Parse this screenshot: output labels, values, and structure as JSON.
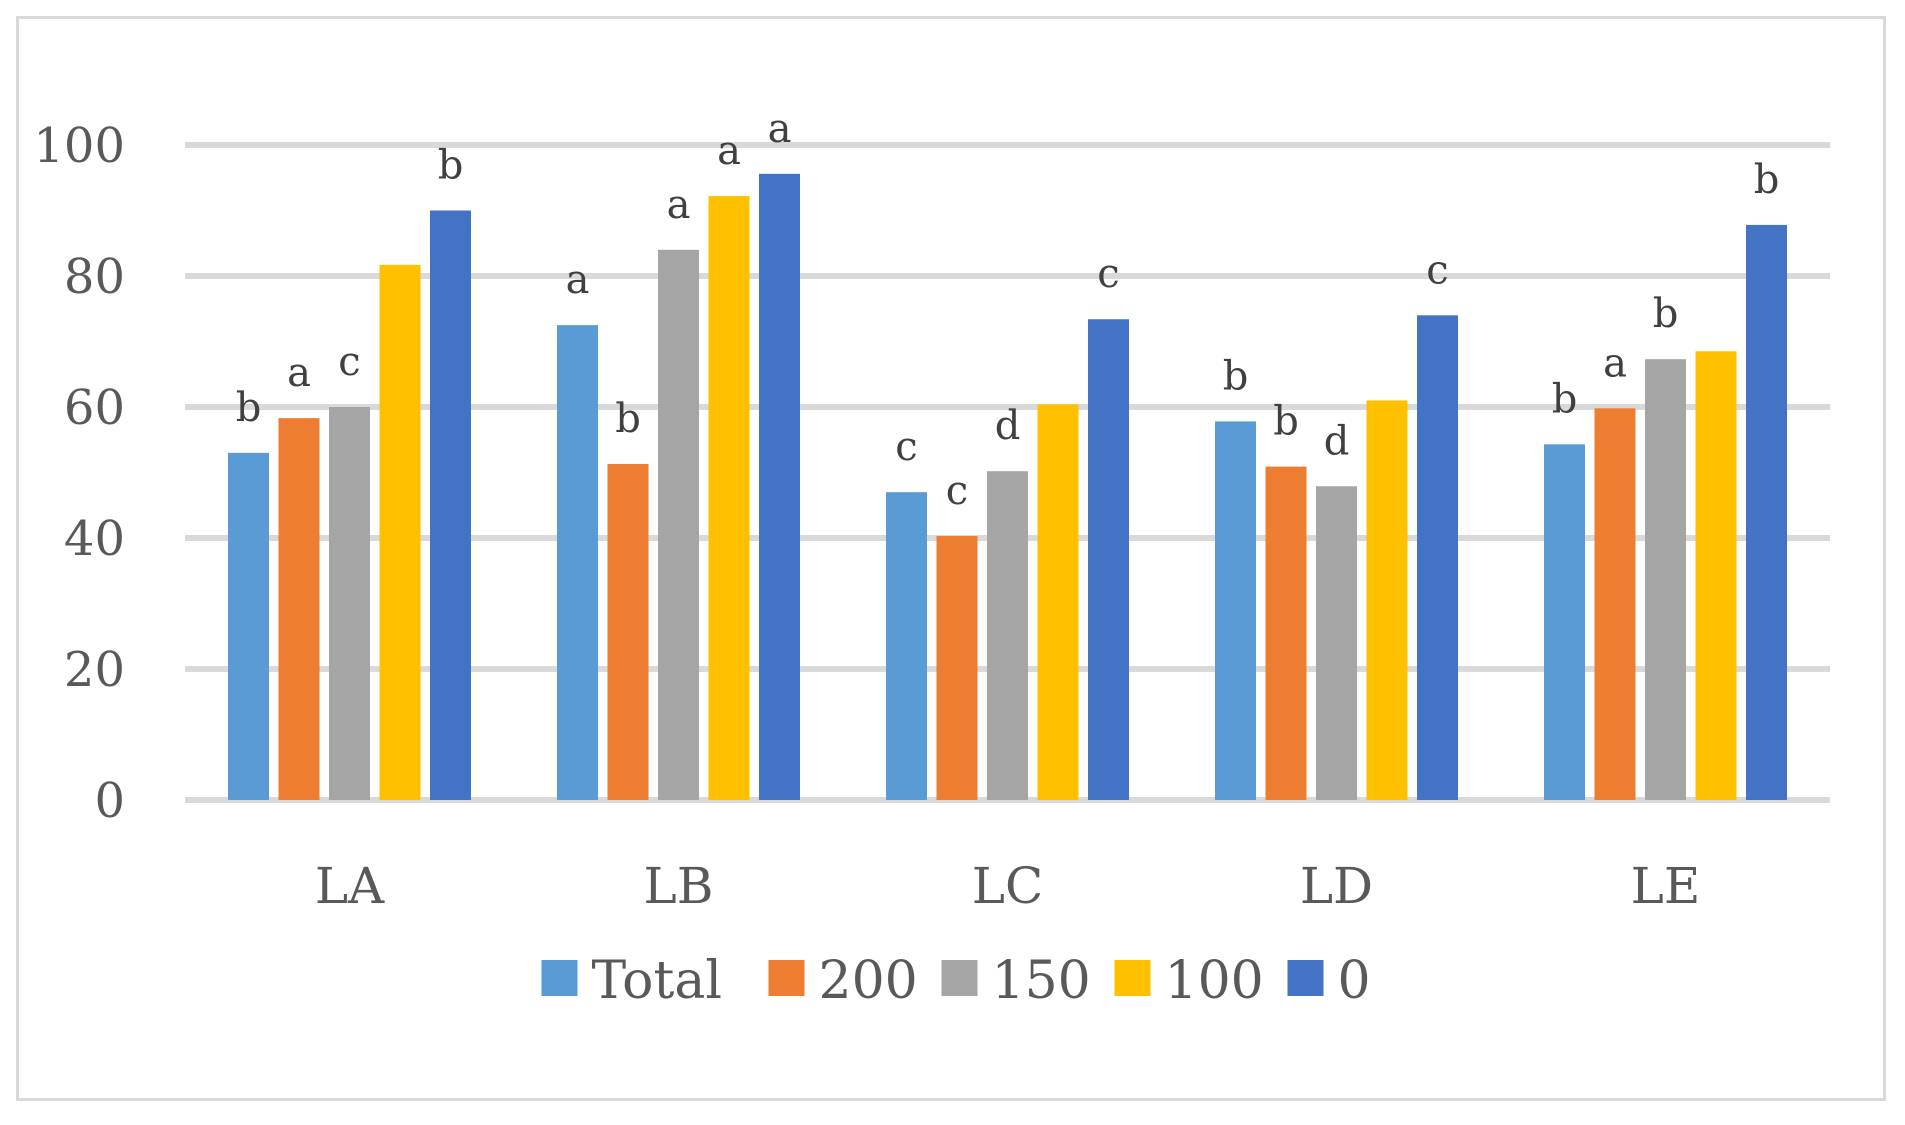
{
  "chart_data": {
    "type": "bar",
    "title": "",
    "xlabel": "",
    "ylabel": "",
    "ylim": [
      0,
      100
    ],
    "yticks": [
      0,
      20,
      40,
      60,
      80,
      100
    ],
    "grid": true,
    "legend_position": "bottom",
    "categories": [
      "LA",
      "LB",
      "LC",
      "LD",
      "LE"
    ],
    "series": [
      {
        "name": "Total",
        "color": "#5b9bd5",
        "values": [
          53,
          72.5,
          47,
          57.8,
          54.3
        ],
        "letters": [
          "b",
          "a",
          "c",
          "b",
          "b"
        ]
      },
      {
        "name": "200",
        "color": "#ed7d31",
        "values": [
          58.3,
          51.3,
          40.3,
          50.9,
          59.8
        ],
        "letters": [
          "a",
          "b",
          "c",
          "b",
          "a"
        ]
      },
      {
        "name": "150",
        "color": "#a5a5a5",
        "values": [
          60,
          84,
          50.2,
          47.9,
          67.3
        ],
        "letters": [
          "c",
          "a",
          "d",
          "d",
          "b"
        ]
      },
      {
        "name": "100",
        "color": "#ffc000",
        "values": [
          81.7,
          92.2,
          60.4,
          61,
          68.5
        ],
        "letters": [
          "",
          "a",
          "",
          "",
          ""
        ]
      },
      {
        "name": "0",
        "color": "#4472c4",
        "values": [
          90,
          95.6,
          73.4,
          74,
          87.8
        ],
        "letters": [
          "b",
          "a",
          "c",
          "c",
          "b"
        ]
      }
    ]
  }
}
